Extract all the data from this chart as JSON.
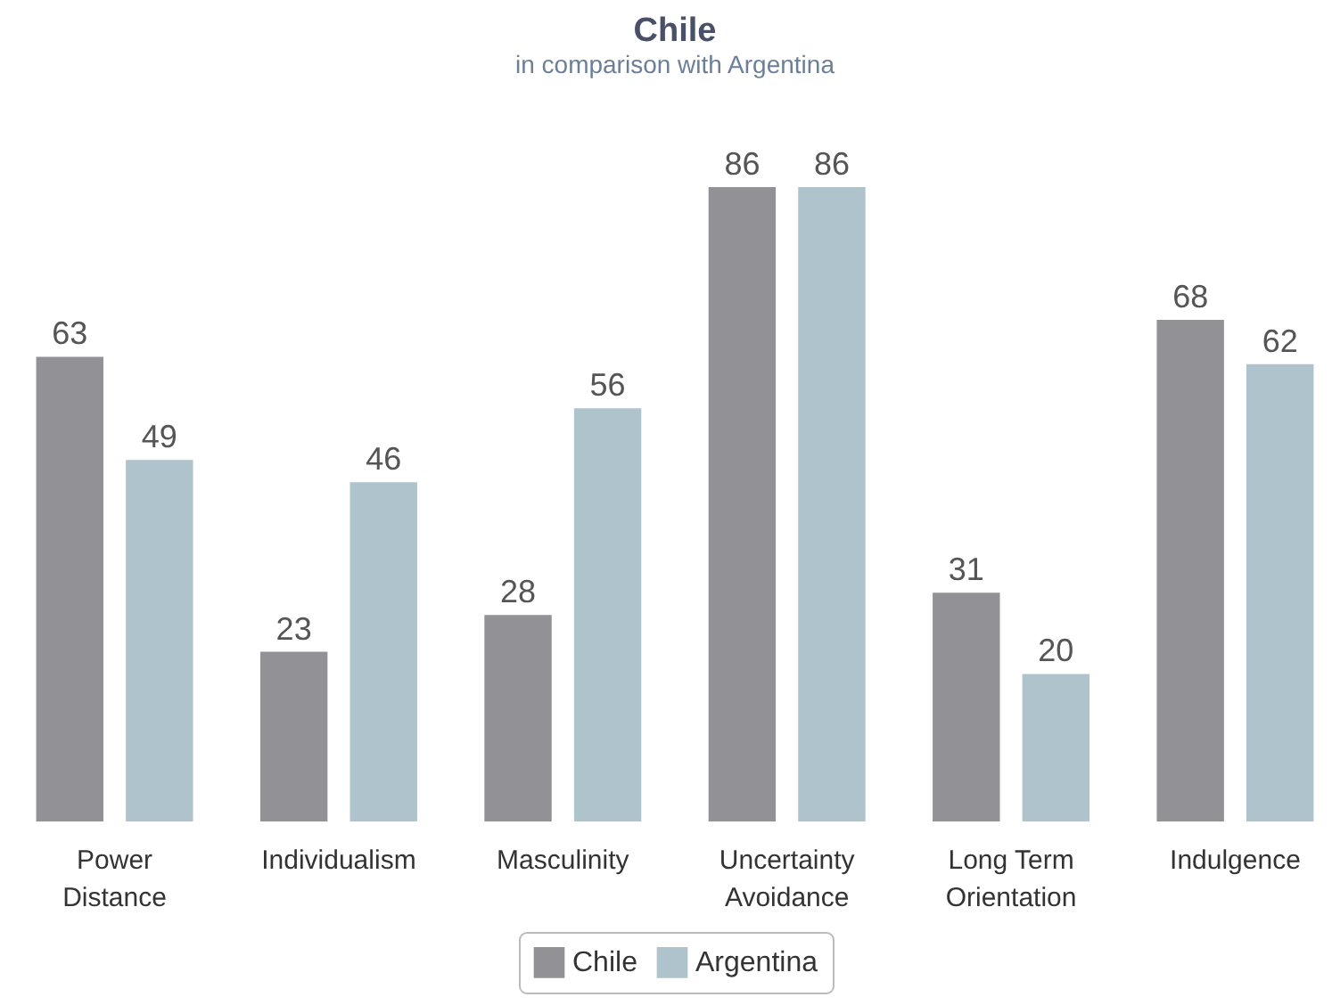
{
  "chart_data": {
    "type": "bar",
    "title": "Chile",
    "subtitle": "in comparison with Argentina",
    "categories": [
      "Power Distance",
      "Individualism",
      "Masculinity",
      "Uncertainty Avoidance",
      "Long Term Orientation",
      "Indulgence"
    ],
    "series": [
      {
        "name": "Chile",
        "color": "#929196",
        "values": [
          63,
          23,
          28,
          86,
          31,
          68
        ]
      },
      {
        "name": "Argentina",
        "color": "#aec3cb",
        "values": [
          49,
          46,
          56,
          86,
          20,
          62
        ]
      }
    ],
    "data_labels": true,
    "legend": "bottom"
  }
}
